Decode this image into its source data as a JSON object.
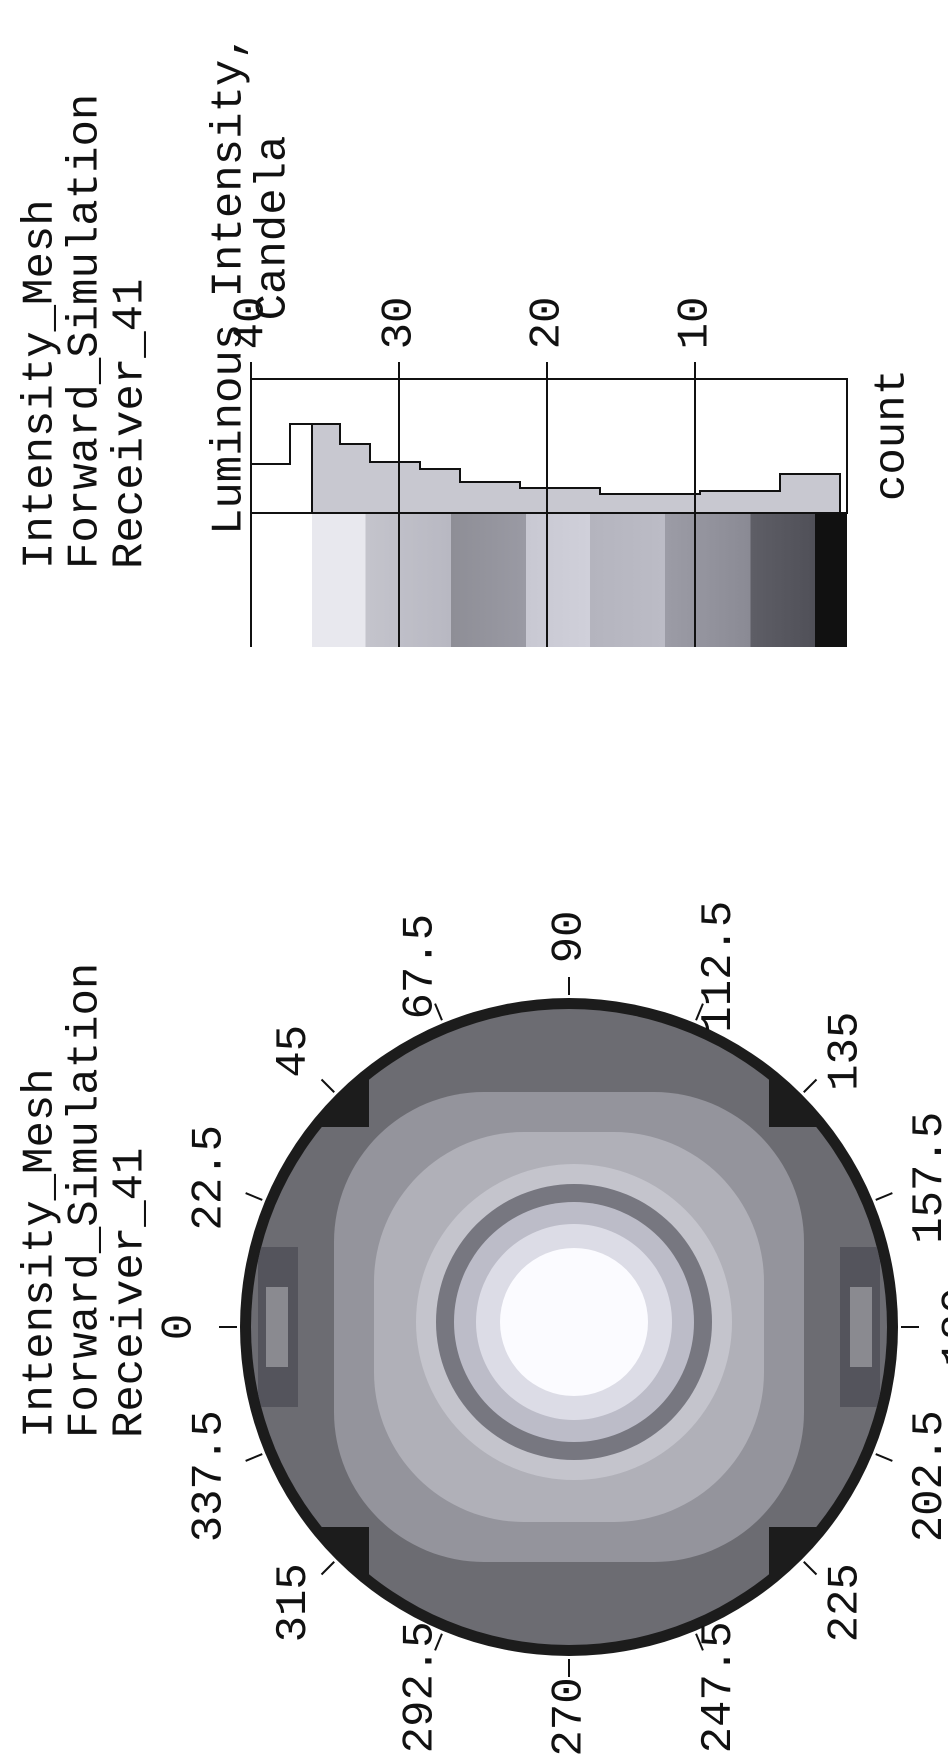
{
  "left_panel": {
    "title": [
      "Intensity_Mesh",
      "Forward_Simulation",
      "Receiver_41"
    ],
    "angle_labels": [
      "0",
      "22.5",
      "45",
      "67.5",
      "90",
      "112.5",
      "135",
      "157.5",
      "180",
      "202.5",
      "225",
      "247.5",
      "270",
      "292.5",
      "315",
      "337.5"
    ]
  },
  "right_panel": {
    "title": [
      "Intensity_Mesh",
      "Forward_Simulation",
      "Receiver_41"
    ],
    "axis_label": [
      "Luminous Intensity,",
      "Candela"
    ],
    "ticks": [
      40,
      30,
      20,
      10
    ],
    "count_label": "count"
  }
}
